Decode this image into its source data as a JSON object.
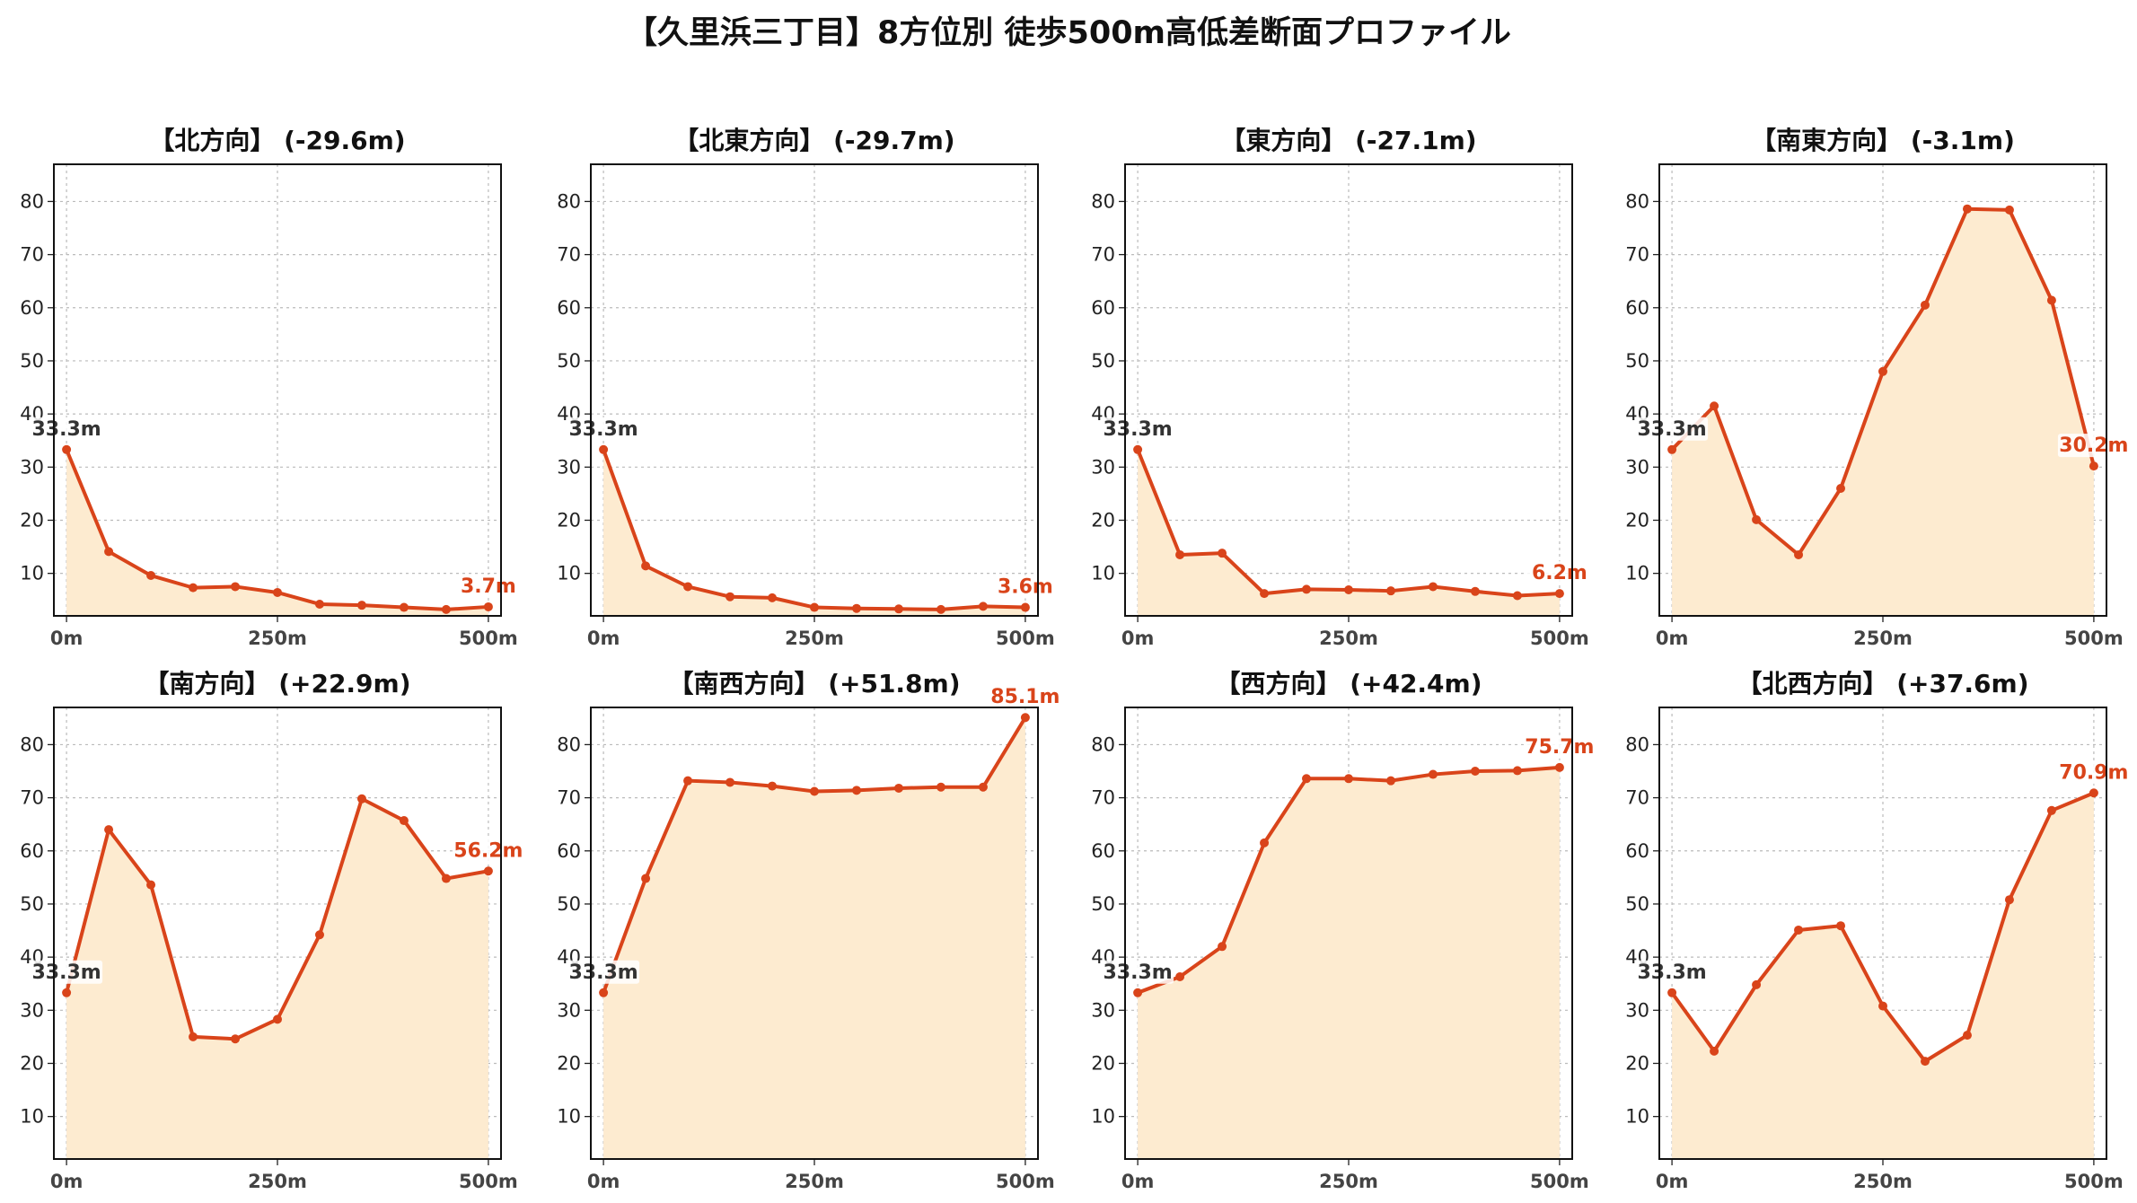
{
  "title": "【久里浜三丁目】8方位別 徒歩500m高低差断面プロファイル",
  "colors": {
    "line": "#d9441a",
    "fill": "#fdebd0",
    "end_label": "#d9441a",
    "start_label": "#333333",
    "grid": "#bbbbbb"
  },
  "chart_data": [
    {
      "type": "area",
      "title": "【北方向】 (-29.6m)",
      "x": [
        0,
        50,
        100,
        150,
        200,
        250,
        300,
        350,
        400,
        450,
        500
      ],
      "values": [
        33.3,
        14.1,
        9.6,
        7.3,
        7.5,
        6.4,
        4.2,
        4.0,
        3.6,
        3.2,
        3.7
      ],
      "start_label": "33.3m",
      "end_label": "3.7m",
      "xticks": [
        "0m",
        "250m",
        "500m"
      ],
      "yticks": [
        "10",
        "20",
        "30",
        "40",
        "50",
        "60",
        "70",
        "80"
      ],
      "ylim": [
        2,
        87
      ],
      "xlim": [
        -15,
        515
      ],
      "grid": true
    },
    {
      "type": "area",
      "title": "【北東方向】 (-29.7m)",
      "x": [
        0,
        50,
        100,
        150,
        200,
        250,
        300,
        350,
        400,
        450,
        500
      ],
      "values": [
        33.3,
        11.4,
        7.5,
        5.6,
        5.4,
        3.6,
        3.4,
        3.3,
        3.2,
        3.8,
        3.6
      ],
      "start_label": "33.3m",
      "end_label": "3.6m",
      "xticks": [
        "0m",
        "250m",
        "500m"
      ],
      "yticks": [
        "10",
        "20",
        "30",
        "40",
        "50",
        "60",
        "70",
        "80"
      ],
      "ylim": [
        2,
        87
      ],
      "xlim": [
        -15,
        515
      ],
      "grid": true
    },
    {
      "type": "area",
      "title": "【東方向】 (-27.1m)",
      "x": [
        0,
        50,
        100,
        150,
        200,
        250,
        300,
        350,
        400,
        450,
        500
      ],
      "values": [
        33.3,
        13.5,
        13.8,
        6.2,
        7.0,
        6.9,
        6.7,
        7.5,
        6.6,
        5.8,
        6.2
      ],
      "start_label": "33.3m",
      "end_label": "6.2m",
      "xticks": [
        "0m",
        "250m",
        "500m"
      ],
      "yticks": [
        "10",
        "20",
        "30",
        "40",
        "50",
        "60",
        "70",
        "80"
      ],
      "ylim": [
        2,
        87
      ],
      "xlim": [
        -15,
        515
      ],
      "grid": true
    },
    {
      "type": "area",
      "title": "【南東方向】 (-3.1m)",
      "x": [
        0,
        50,
        100,
        150,
        200,
        250,
        300,
        350,
        400,
        450,
        500
      ],
      "values": [
        33.3,
        41.5,
        20.1,
        13.5,
        26.0,
        48.0,
        60.5,
        78.6,
        78.4,
        61.4,
        30.2
      ],
      "start_label": "33.3m",
      "end_label": "30.2m",
      "xticks": [
        "0m",
        "250m",
        "500m"
      ],
      "yticks": [
        "10",
        "20",
        "30",
        "40",
        "50",
        "60",
        "70",
        "80"
      ],
      "ylim": [
        2,
        87
      ],
      "xlim": [
        -15,
        515
      ],
      "grid": true
    },
    {
      "type": "area",
      "title": "【南方向】 (+22.9m)",
      "x": [
        0,
        50,
        100,
        150,
        200,
        250,
        300,
        350,
        400,
        450,
        500
      ],
      "values": [
        33.3,
        64.0,
        53.6,
        25.0,
        24.6,
        28.3,
        44.2,
        69.8,
        65.7,
        54.8,
        56.2
      ],
      "start_label": "33.3m",
      "end_label": "56.2m",
      "xticks": [
        "0m",
        "250m",
        "500m"
      ],
      "yticks": [
        "10",
        "20",
        "30",
        "40",
        "50",
        "60",
        "70",
        "80"
      ],
      "ylim": [
        2,
        87
      ],
      "xlim": [
        -15,
        515
      ],
      "grid": true
    },
    {
      "type": "area",
      "title": "【南西方向】 (+51.8m)",
      "x": [
        0,
        50,
        100,
        150,
        200,
        250,
        300,
        350,
        400,
        450,
        500
      ],
      "values": [
        33.3,
        54.8,
        73.2,
        72.9,
        72.2,
        71.2,
        71.4,
        71.8,
        72.0,
        72.0,
        85.1
      ],
      "start_label": "33.3m",
      "end_label": "85.1m",
      "xticks": [
        "0m",
        "250m",
        "500m"
      ],
      "yticks": [
        "10",
        "20",
        "30",
        "40",
        "50",
        "60",
        "70",
        "80"
      ],
      "ylim": [
        2,
        87
      ],
      "xlim": [
        -15,
        515
      ],
      "grid": true
    },
    {
      "type": "area",
      "title": "【西方向】 (+42.4m)",
      "x": [
        0,
        50,
        100,
        150,
        200,
        250,
        300,
        350,
        400,
        450,
        500
      ],
      "values": [
        33.3,
        36.3,
        42.0,
        61.5,
        73.6,
        73.6,
        73.2,
        74.4,
        75.0,
        75.1,
        75.7
      ],
      "start_label": "33.3m",
      "end_label": "75.7m",
      "xticks": [
        "0m",
        "250m",
        "500m"
      ],
      "yticks": [
        "10",
        "20",
        "30",
        "40",
        "50",
        "60",
        "70",
        "80"
      ],
      "ylim": [
        2,
        87
      ],
      "xlim": [
        -15,
        515
      ],
      "grid": true
    },
    {
      "type": "area",
      "title": "【北西方向】 (+37.6m)",
      "x": [
        0,
        50,
        100,
        150,
        200,
        250,
        300,
        350,
        400,
        450,
        500
      ],
      "values": [
        33.3,
        22.3,
        34.8,
        45.1,
        45.9,
        30.8,
        20.4,
        25.3,
        50.8,
        67.6,
        70.9
      ],
      "start_label": "33.3m",
      "end_label": "70.9m",
      "xticks": [
        "0m",
        "250m",
        "500m"
      ],
      "yticks": [
        "10",
        "20",
        "30",
        "40",
        "50",
        "60",
        "70",
        "80"
      ],
      "ylim": [
        2,
        87
      ],
      "xlim": [
        -15,
        515
      ],
      "grid": true
    }
  ]
}
